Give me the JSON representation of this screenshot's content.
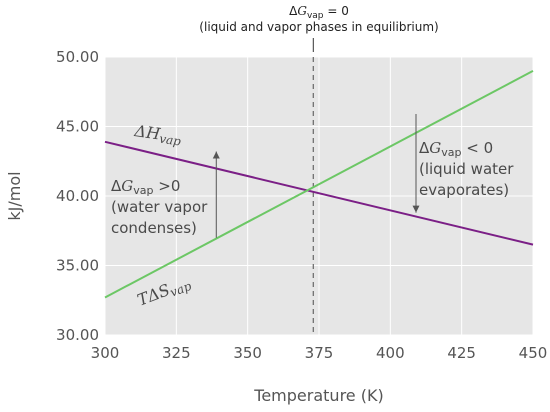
{
  "chart_data": {
    "type": "line",
    "xlabel": "Temperature (K)",
    "ylabel": "kJ/mol",
    "xlim": [
      300,
      450
    ],
    "ylim": [
      30,
      50
    ],
    "x_ticks": [
      300,
      325,
      350,
      375,
      400,
      425,
      450
    ],
    "x_tick_labels": [
      "300",
      "325",
      "350",
      "375",
      "400",
      "425",
      "450"
    ],
    "y_ticks": [
      30,
      35,
      40,
      45,
      50
    ],
    "y_tick_labels": [
      "30.00",
      "35.00",
      "40.00",
      "45.00",
      "50.00"
    ],
    "grid": true,
    "background": "#e6e6e6",
    "series": [
      {
        "name": "ΔHvap",
        "color": "#7b1f86",
        "x": [
          300,
          450
        ],
        "y": [
          43.9,
          36.5
        ]
      },
      {
        "name": "TΔSvap",
        "color": "#6cc765",
        "x": [
          300,
          450
        ],
        "y": [
          32.7,
          49.0
        ]
      }
    ],
    "equilibrium": {
      "x": 373,
      "label_line1": "ΔGvap = 0",
      "label_line2": "(liquid and vapor phases in equilibrium)"
    },
    "annotations": {
      "left": {
        "line1": "ΔGvap>0",
        "line2": "(water vapor",
        "line3": "condenses)",
        "arrow_x": 339,
        "arrow_y_from": 37.0,
        "arrow_y_to": 43.2
      },
      "right": {
        "line1": "ΔGvap < 0",
        "line2": "(liquid water",
        "line3": "evaporates)",
        "arrow_x": 409,
        "arrow_y_from": 45.9,
        "arrow_y_to": 38.8
      }
    },
    "series_labels": {
      "dh_main": "ΔH",
      "dh_sub": "vap",
      "tds_main": "TΔS",
      "tds_sub": "vap"
    }
  }
}
